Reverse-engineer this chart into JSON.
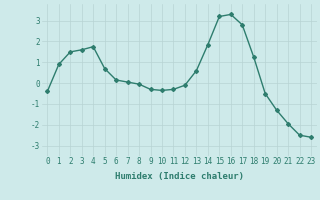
{
  "x": [
    0,
    1,
    2,
    3,
    4,
    5,
    6,
    7,
    8,
    9,
    10,
    11,
    12,
    13,
    14,
    15,
    16,
    17,
    18,
    19,
    20,
    21,
    22,
    23
  ],
  "y": [
    -0.4,
    0.9,
    1.5,
    1.6,
    1.75,
    0.7,
    0.15,
    0.05,
    -0.05,
    -0.3,
    -0.35,
    -0.3,
    -0.1,
    0.6,
    1.85,
    3.2,
    3.3,
    2.8,
    1.25,
    -0.5,
    -1.3,
    -1.95,
    -2.5,
    -2.6
  ],
  "line_color": "#2e7d6e",
  "marker": "D",
  "markersize": 2.0,
  "linewidth": 1.0,
  "xlabel": "Humidex (Indice chaleur)",
  "xlim": [
    -0.5,
    23.5
  ],
  "ylim": [
    -3.5,
    3.8
  ],
  "yticks": [
    -3,
    -2,
    -1,
    0,
    1,
    2,
    3
  ],
  "xticks": [
    0,
    1,
    2,
    3,
    4,
    5,
    6,
    7,
    8,
    9,
    10,
    11,
    12,
    13,
    14,
    15,
    16,
    17,
    18,
    19,
    20,
    21,
    22,
    23
  ],
  "xtick_labels": [
    "0",
    "1",
    "2",
    "3",
    "4",
    "5",
    "6",
    "7",
    "8",
    "9",
    "10",
    "11",
    "12",
    "13",
    "14",
    "15",
    "16",
    "17",
    "18",
    "19",
    "20",
    "21",
    "22",
    "23"
  ],
  "bg_color": "#ceeaea",
  "grid_color": "#b8d4d4",
  "tick_fontsize": 5.5,
  "xlabel_fontsize": 6.5,
  "xlabel_fontweight": "bold"
}
